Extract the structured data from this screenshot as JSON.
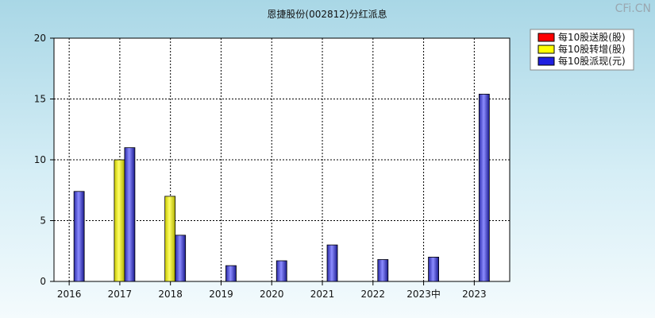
{
  "watermark": "CFi.CN",
  "chart_data": {
    "type": "bar",
    "title": "恩捷股份(002812)分红派息",
    "xlabel": "",
    "ylabel": "",
    "ylim": [
      0,
      20
    ],
    "yticks": [
      0,
      5,
      10,
      15,
      20
    ],
    "grid": true,
    "legend_position": "top-right",
    "categories": [
      "2016",
      "2017",
      "2018",
      "2019",
      "2020",
      "2021",
      "2022",
      "2023中",
      "2023"
    ],
    "series": [
      {
        "name": "每10股送股(股)",
        "color": "#ff0000",
        "values": [
          0,
          0,
          0,
          0,
          0,
          0,
          0,
          0,
          0
        ]
      },
      {
        "name": "每10股转增(股)",
        "color": "#ffff00",
        "values": [
          0,
          10,
          7,
          0,
          0,
          0,
          0,
          0,
          0
        ]
      },
      {
        "name": "每10股派现(元)",
        "color": "#1f1fe0",
        "values": [
          7.4,
          11.0,
          3.8,
          1.3,
          1.7,
          3.0,
          1.8,
          2.0,
          15.4
        ]
      }
    ]
  }
}
